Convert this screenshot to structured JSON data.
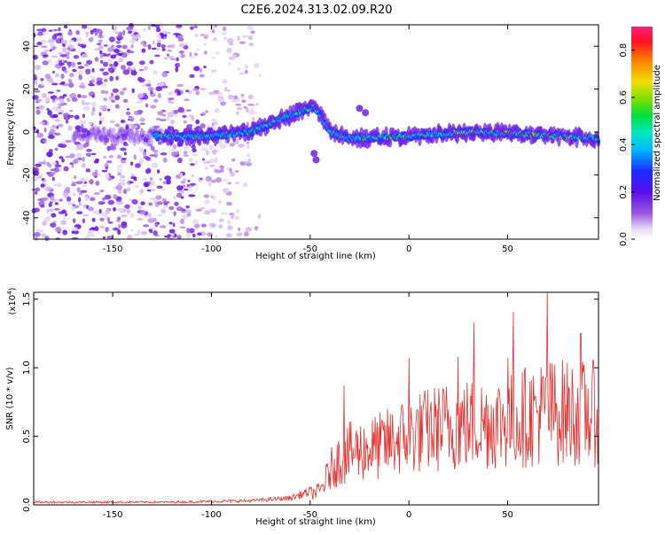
{
  "title": "C2E6.2024.313.02.09.R20",
  "colors": {
    "snr_line": "#e8302e",
    "background": "#ffffff",
    "axis": "#000000"
  },
  "chart_data": [
    {
      "type": "heatmap",
      "title": "C2E6.2024.313.02.09.R20",
      "xlabel": "Height of straight line (km)",
      "ylabel": "Frequency (Hz)",
      "xlim": [
        -190,
        96
      ],
      "ylim": [
        -50,
        50
      ],
      "x_ticks": [
        -150,
        -100,
        -50,
        0,
        50
      ],
      "y_ticks": [
        -40,
        -20,
        0,
        20,
        40
      ],
      "colorbar": {
        "label": "Normalized spectral amplitude",
        "range": [
          0.0,
          0.9
        ],
        "ticks": [
          "0.0",
          "0.2",
          "0.4",
          "0.6",
          "0.8"
        ],
        "colormap": "rainbow"
      },
      "ridge_frequency": [
        {
          "x": -170,
          "y": -2
        },
        {
          "x": -130,
          "y": -2
        },
        {
          "x": -100,
          "y": -2
        },
        {
          "x": -80,
          "y": 0
        },
        {
          "x": -70,
          "y": 4
        },
        {
          "x": -60,
          "y": 8
        },
        {
          "x": -48,
          "y": 12
        },
        {
          "x": -45,
          "y": 8
        },
        {
          "x": -40,
          "y": 0
        },
        {
          "x": -30,
          "y": -3
        },
        {
          "x": 0,
          "y": -2
        },
        {
          "x": 30,
          "y": 0
        },
        {
          "x": 60,
          "y": -1
        },
        {
          "x": 95,
          "y": -3
        }
      ]
    },
    {
      "type": "line",
      "xlabel": "Height of straight line (km)",
      "ylabel": "SNR (10 * v/v)",
      "scale_note": "(x10",
      "scale_exp": "4",
      "xlim": [
        -190,
        96
      ],
      "ylim": [
        0,
        1.55
      ],
      "x_ticks": [
        -150,
        -100,
        -50,
        0,
        50
      ],
      "y_ticks": [
        "0.0",
        "0.5",
        "1.0",
        "1.5"
      ],
      "series": [
        {
          "envelope": [
            {
              "x": -190,
              "y": 0.02
            },
            {
              "x": -120,
              "y": 0.02
            },
            {
              "x": -80,
              "y": 0.03
            },
            {
              "x": -60,
              "y": 0.05
            },
            {
              "x": -45,
              "y": 0.12
            },
            {
              "x": -38,
              "y": 0.35
            },
            {
              "x": -30,
              "y": 0.45
            },
            {
              "x": -15,
              "y": 0.5
            },
            {
              "x": 0,
              "y": 0.6
            },
            {
              "x": 20,
              "y": 0.68
            },
            {
              "x": 50,
              "y": 0.72
            },
            {
              "x": 70,
              "y": 0.8
            },
            {
              "x": 96,
              "y": 0.78
            }
          ],
          "peaks": [
            {
              "x": -33,
              "y": 0.87
            },
            {
              "x": 0,
              "y": 1.07
            },
            {
              "x": 25,
              "y": 1.08
            },
            {
              "x": 33,
              "y": 1.33
            },
            {
              "x": 50,
              "y": 1.07
            },
            {
              "x": 53,
              "y": 1.41
            },
            {
              "x": 70,
              "y": 1.58
            },
            {
              "x": 87,
              "y": 1.25
            }
          ]
        }
      ]
    }
  ]
}
